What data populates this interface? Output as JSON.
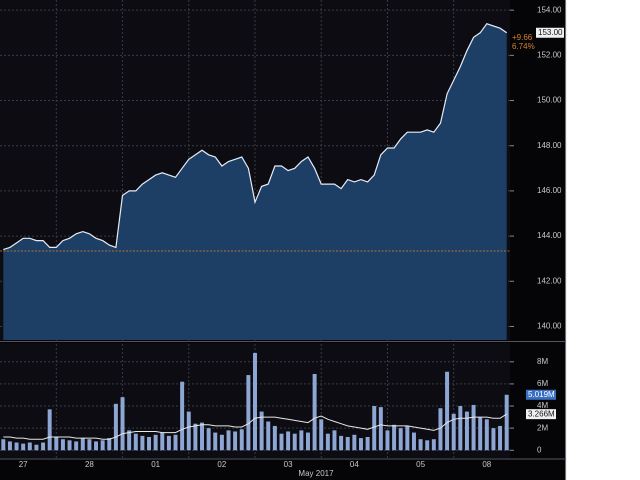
{
  "chart_data": [
    {
      "type": "area",
      "values": [
        143.4,
        143.5,
        143.7,
        143.9,
        143.9,
        143.8,
        143.8,
        143.5,
        143.5,
        143.8,
        143.9,
        144.1,
        144.2,
        144.1,
        143.9,
        143.8,
        143.6,
        143.5,
        145.8,
        146.0,
        146.0,
        146.3,
        146.5,
        146.7,
        146.8,
        146.7,
        146.6,
        147.0,
        147.4,
        147.6,
        147.8,
        147.6,
        147.5,
        147.1,
        147.3,
        147.4,
        147.5,
        147.0,
        145.5,
        146.2,
        146.3,
        147.1,
        147.1,
        146.9,
        147.0,
        147.3,
        147.5,
        147.0,
        146.3,
        146.3,
        146.3,
        146.1,
        146.5,
        146.4,
        146.5,
        146.4,
        146.7,
        147.6,
        147.9,
        147.9,
        148.3,
        148.6,
        148.6,
        148.6,
        148.7,
        148.6,
        149.0,
        150.3,
        150.9,
        151.5,
        152.2,
        152.8,
        153.0,
        153.4,
        153.3,
        153.2,
        153.0
      ],
      "color": "#e6ecf5",
      "fill": "#1d3f66",
      "ylim": [
        139.4,
        154.45
      ],
      "yticks": [
        {
          "value": 140,
          "label": "140.00"
        },
        {
          "value": 142,
          "label": "142.00"
        },
        {
          "value": 144,
          "label": "144.00"
        },
        {
          "value": 146,
          "label": "146.00"
        },
        {
          "value": 148,
          "label": "148.00"
        },
        {
          "value": 150,
          "label": "150.00"
        },
        {
          "value": 152,
          "label": "152.00"
        },
        {
          "value": 154,
          "label": "154.00"
        }
      ],
      "grid": true,
      "reference_line": 143.34,
      "reference_color": "#d9822b",
      "last_label": "153.00",
      "change": "+9.66",
      "change_percent": "6.74%"
    },
    {
      "type": "bar",
      "xlabel": "May 2017",
      "categories": [
        null,
        null,
        null,
        "27",
        null,
        null,
        null,
        null,
        null,
        null,
        null,
        null,
        null,
        "28",
        null,
        null,
        null,
        null,
        null,
        null,
        null,
        null,
        null,
        "01",
        null,
        null,
        null,
        null,
        null,
        null,
        null,
        null,
        null,
        "02",
        null,
        null,
        null,
        null,
        null,
        null,
        null,
        null,
        null,
        "03",
        null,
        null,
        null,
        null,
        null,
        null,
        null,
        null,
        null,
        "04",
        null,
        null,
        null,
        null,
        null,
        null,
        null,
        null,
        null,
        "05",
        null,
        null,
        null,
        null,
        null,
        null,
        null,
        null,
        null,
        "08",
        null,
        null,
        null
      ],
      "series": [
        {
          "type": "bar",
          "color": "#8ea6d4",
          "last_label": "5.019M",
          "values": [
            1.0,
            0.8,
            0.7,
            0.6,
            0.7,
            0.5,
            0.7,
            3.7,
            1.2,
            1.0,
            0.9,
            0.8,
            1.1,
            1.0,
            0.8,
            0.9,
            1.1,
            4.2,
            4.8,
            1.8,
            1.5,
            1.3,
            1.2,
            1.4,
            1.6,
            1.3,
            1.4,
            6.2,
            3.5,
            2.4,
            2.5,
            2.0,
            1.6,
            1.4,
            1.8,
            1.7,
            1.9,
            6.8,
            8.8,
            3.5,
            2.6,
            2.2,
            1.5,
            1.7,
            1.5,
            1.8,
            1.6,
            6.9,
            2.8,
            1.5,
            1.8,
            1.3,
            1.2,
            1.4,
            1.1,
            1.2,
            4.0,
            3.9,
            1.8,
            2.3,
            2.0,
            2.2,
            1.6,
            1.0,
            0.9,
            1.0,
            3.8,
            7.1,
            3.3,
            4.0,
            3.5,
            4.1,
            3.0,
            2.8,
            2.0,
            2.2,
            5.019
          ]
        },
        {
          "type": "line",
          "color": "#e8e8e8",
          "last_label": "3.266M",
          "values": [
            1.2,
            1.2,
            1.1,
            1.1,
            1.0,
            1.0,
            1.0,
            1.2,
            1.2,
            1.2,
            1.2,
            1.1,
            1.1,
            1.1,
            1.1,
            1.0,
            1.0,
            1.2,
            1.5,
            1.6,
            1.7,
            1.7,
            1.7,
            1.7,
            1.6,
            1.6,
            1.6,
            1.9,
            2.1,
            2.2,
            2.3,
            2.3,
            2.2,
            2.2,
            2.2,
            2.1,
            2.1,
            2.4,
            2.9,
            3.0,
            3.0,
            3.0,
            2.9,
            2.8,
            2.7,
            2.6,
            2.5,
            2.9,
            3.1,
            2.8,
            2.6,
            2.4,
            2.2,
            2.1,
            2.0,
            1.9,
            2.1,
            2.3,
            2.2,
            2.2,
            2.2,
            2.2,
            2.1,
            2.0,
            1.9,
            1.8,
            2.0,
            2.5,
            2.8,
            2.9,
            2.9,
            3.0,
            3.0,
            3.0,
            2.9,
            2.9,
            3.266
          ]
        }
      ],
      "ylim": [
        -0.7,
        9.7
      ],
      "yticks": [
        0,
        {
          "value": 2,
          "label": "2M"
        },
        {
          "value": 4,
          "label": "4M"
        },
        {
          "value": 6,
          "label": "6M"
        },
        {
          "value": 8,
          "label": "8M"
        }
      ],
      "grid": true
    }
  ]
}
